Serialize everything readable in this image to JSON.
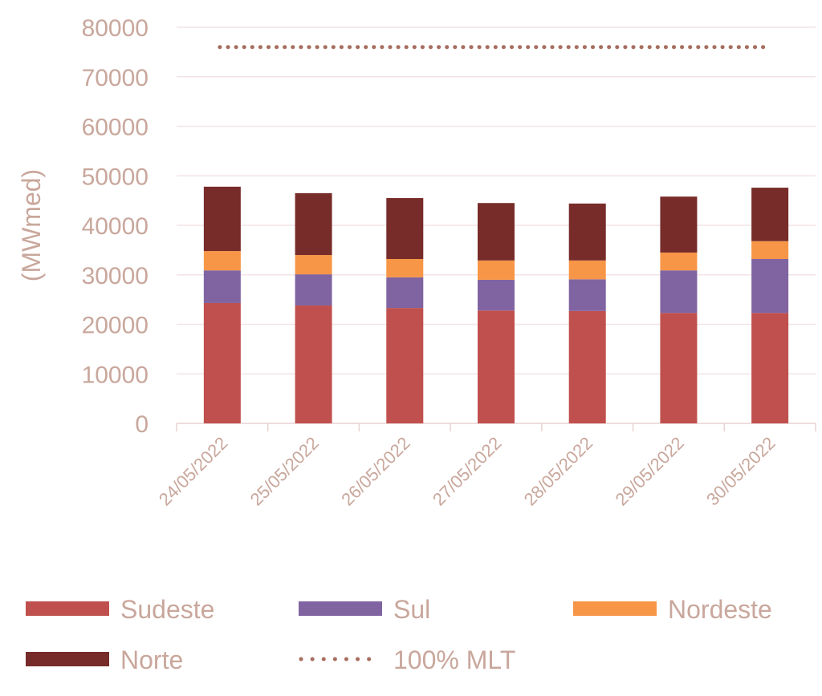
{
  "chart_data": {
    "type": "bar",
    "stacked": true,
    "title": "",
    "xlabel": "",
    "ylabel": "(MWmed)",
    "ylim": [
      0,
      80000
    ],
    "yticks": [
      0,
      10000,
      20000,
      30000,
      40000,
      50000,
      60000,
      70000,
      80000
    ],
    "grid": true,
    "legend_position": "bottom",
    "categories": [
      "24/05/2022",
      "25/05/2022",
      "26/05/2022",
      "27/05/2022",
      "28/05/2022",
      "29/05/2022",
      "30/05/2022"
    ],
    "series": [
      {
        "name": "Sudeste",
        "color": "#C0504D",
        "values": [
          24300,
          23800,
          23300,
          22800,
          22700,
          22300,
          22300
        ]
      },
      {
        "name": "Sul",
        "color": "#8064A2",
        "values": [
          6600,
          6300,
          6200,
          6200,
          6400,
          8600,
          10900
        ]
      },
      {
        "name": "Nordeste",
        "color": "#F79646",
        "values": [
          3900,
          3900,
          3700,
          3900,
          3800,
          3600,
          3600
        ]
      },
      {
        "name": "Norte",
        "color": "#772C2A",
        "values": [
          13000,
          12500,
          12300,
          11600,
          11500,
          11300,
          10800
        ]
      }
    ],
    "lines": [
      {
        "name": "100% MLT",
        "color": "#A86E60",
        "style": "dotted",
        "values": [
          76000,
          76000,
          76000,
          76000,
          76000,
          76000,
          76000
        ]
      }
    ]
  }
}
